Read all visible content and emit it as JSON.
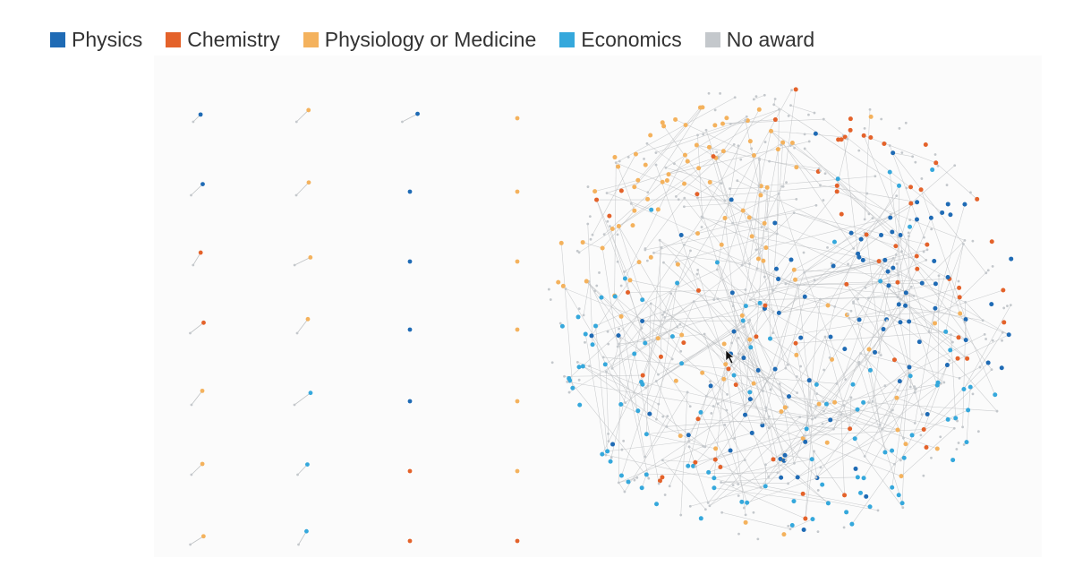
{
  "legend": {
    "items": [
      {
        "label": "Physics",
        "color": "#1f6bb5"
      },
      {
        "label": "Chemistry",
        "color": "#e4622a"
      },
      {
        "label": "Physiology or Medicine",
        "color": "#f4b25d"
      },
      {
        "label": "Economics",
        "color": "#35a8dc"
      },
      {
        "label": "No award",
        "color": "#c4c8cc"
      }
    ]
  },
  "colors": {
    "edge": "#b9bcbf",
    "background": "#fbfbfb"
  },
  "small_components": {
    "columns": [
      [
        "Physics",
        "Physiology or Medicine",
        "Physics",
        "Physiology or Medicine"
      ],
      [
        "Physics",
        "Physiology or Medicine",
        "Physics",
        "Physiology or Medicine"
      ],
      [
        "Chemistry",
        "Physiology or Medicine",
        "Physics",
        "Physiology or Medicine"
      ],
      [
        "Chemistry",
        "Physiology or Medicine",
        "Physics",
        "Physiology or Medicine"
      ],
      [
        "Physiology or Medicine",
        "Economics",
        "Physics",
        "Physiology or Medicine"
      ],
      [
        "Physiology or Medicine",
        "Economics",
        "Chemistry",
        "Physiology or Medicine"
      ],
      [
        "Physiology or Medicine",
        "Economics",
        "Chemistry",
        "Chemistry"
      ]
    ]
  }
}
